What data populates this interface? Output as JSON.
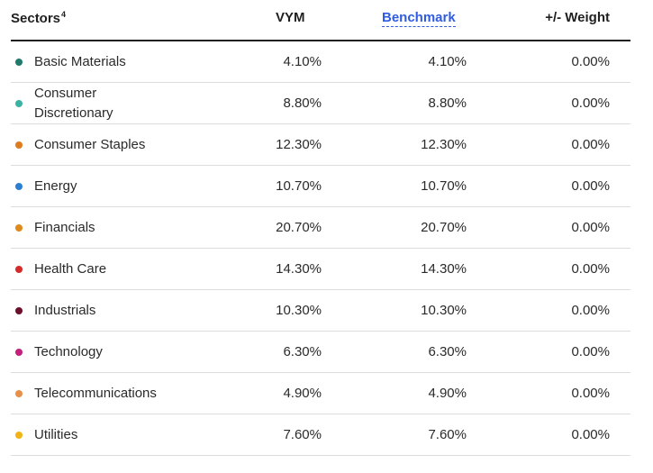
{
  "header": {
    "sectors_label": "Sectors",
    "sectors_footnote": "4",
    "vym_label": "VYM",
    "benchmark_label": "Benchmark",
    "weight_label": "+/- Weight"
  },
  "rows": [
    {
      "sector": "Basic Materials",
      "vym": "4.10%",
      "benchmark": "4.10%",
      "weight": "0.00%",
      "color": "#1f7a6b"
    },
    {
      "sector": "Consumer Discretionary",
      "vym": "8.80%",
      "benchmark": "8.80%",
      "weight": "0.00%",
      "color": "#3bb3a3"
    },
    {
      "sector": "Consumer Staples",
      "vym": "12.30%",
      "benchmark": "12.30%",
      "weight": "0.00%",
      "color": "#e07a1f"
    },
    {
      "sector": "Energy",
      "vym": "10.70%",
      "benchmark": "10.70%",
      "weight": "0.00%",
      "color": "#2a7fd4"
    },
    {
      "sector": "Financials",
      "vym": "20.70%",
      "benchmark": "20.70%",
      "weight": "0.00%",
      "color": "#e08a1c"
    },
    {
      "sector": "Health Care",
      "vym": "14.30%",
      "benchmark": "14.30%",
      "weight": "0.00%",
      "color": "#d42a2a"
    },
    {
      "sector": "Industrials",
      "vym": "10.30%",
      "benchmark": "10.30%",
      "weight": "0.00%",
      "color": "#6b0f2a"
    },
    {
      "sector": "Technology",
      "vym": "6.30%",
      "benchmark": "6.30%",
      "weight": "0.00%",
      "color": "#c2207a"
    },
    {
      "sector": "Telecommunications",
      "vym": "4.90%",
      "benchmark": "4.90%",
      "weight": "0.00%",
      "color": "#e8904a"
    },
    {
      "sector": "Utilities",
      "vym": "7.60%",
      "benchmark": "7.60%",
      "weight": "0.00%",
      "color": "#f2b316"
    }
  ]
}
